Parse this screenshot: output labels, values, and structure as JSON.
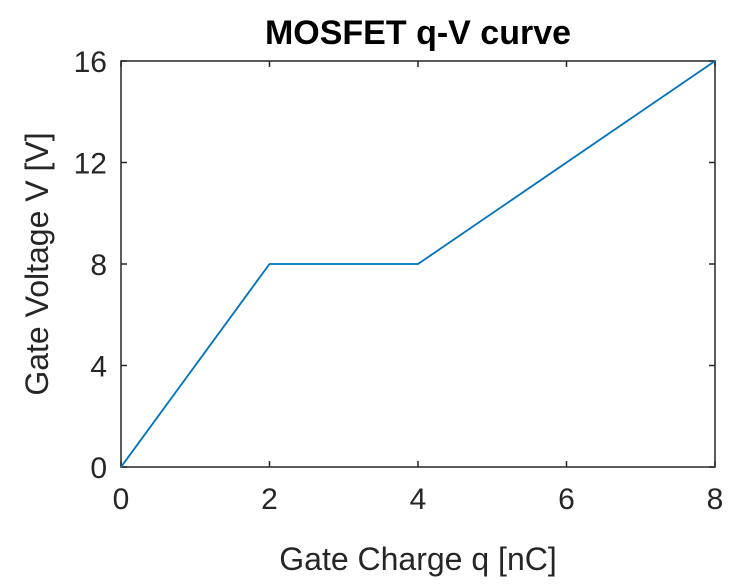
{
  "chart_data": {
    "type": "line",
    "title": "MOSFET q-V curve",
    "xlabel": "Gate Charge q [nC]",
    "ylabel": "Gate Voltage V [V]",
    "xlim": [
      0,
      8
    ],
    "ylim": [
      0,
      16
    ],
    "xticks": [
      0,
      2,
      4,
      6,
      8
    ],
    "yticks": [
      0,
      4,
      8,
      12,
      16
    ],
    "xtick_labels": [
      "0",
      "2",
      "4",
      "6",
      "8"
    ],
    "ytick_labels": [
      "0",
      "4",
      "8",
      "12",
      "16"
    ],
    "grid": false,
    "box": true,
    "series": [
      {
        "x": [
          0,
          2,
          4,
          8
        ],
        "y": [
          0,
          8,
          8,
          16
        ],
        "color": "#0072BD"
      }
    ]
  }
}
